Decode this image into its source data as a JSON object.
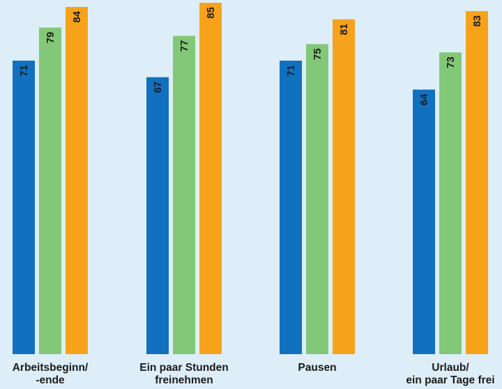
{
  "chart_data": {
    "type": "bar",
    "categories": [
      [
        "Arbeitsbeginn/",
        "-ende"
      ],
      [
        "Ein paar Stunden",
        "freinehmen"
      ],
      [
        "Pausen"
      ],
      [
        "Urlaub/",
        "ein paar Tage frei"
      ]
    ],
    "series": [
      {
        "color": "#1170bf",
        "values": [
          71,
          67,
          71,
          64
        ]
      },
      {
        "color": "#82c878",
        "values": [
          79,
          77,
          75,
          73
        ]
      },
      {
        "color": "#f7a21b",
        "values": [
          84,
          85,
          81,
          83
        ]
      }
    ],
    "ylim": [
      0,
      85
    ],
    "grid": false,
    "legend": "none",
    "value_labels": "inside-top-rotated",
    "title": "",
    "xlabel": "",
    "ylabel": ""
  },
  "colors": {
    "background": "#ddeef8",
    "label_text": "#1c1c1c"
  }
}
